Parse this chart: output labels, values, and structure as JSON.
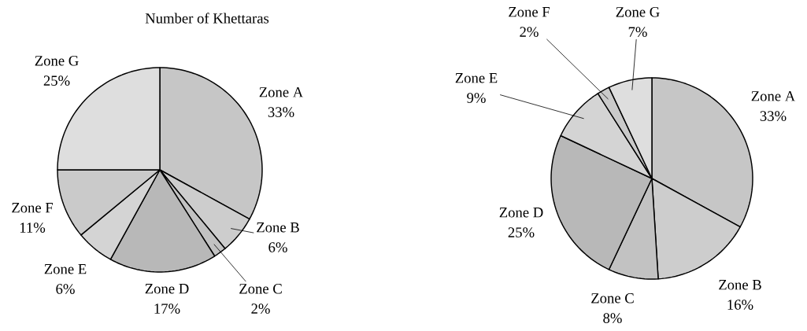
{
  "chart_data": [
    {
      "type": "pie",
      "title": "Number of Khettaras",
      "categories": [
        "Zone A",
        "Zone B",
        "Zone C",
        "Zone D",
        "Zone E",
        "Zone F",
        "Zone G"
      ],
      "values": [
        33,
        6,
        2,
        17,
        6,
        11,
        25
      ],
      "value_labels": [
        "33%",
        "6%",
        "2%",
        "17%",
        "6%",
        "11%",
        "25%"
      ],
      "colors": [
        "#c6c6c6",
        "#cdcdcd",
        "#c2c2c2",
        "#b8b8b8",
        "#d4d4d4",
        "#cacaca",
        "#dedede"
      ]
    },
    {
      "type": "pie",
      "categories": [
        "Zone A",
        "Zone B",
        "Zone C",
        "Zone D",
        "Zone E",
        "Zone F",
        "Zone G"
      ],
      "values": [
        33,
        16,
        8,
        25,
        9,
        2,
        7
      ],
      "value_labels": [
        "33%",
        "16%",
        "8%",
        "25%",
        "9%",
        "2%",
        "7%"
      ],
      "colors": [
        "#c6c6c6",
        "#cdcdcd",
        "#c2c2c2",
        "#b8b8b8",
        "#d4d4d4",
        "#cacaca",
        "#dedede"
      ]
    }
  ]
}
